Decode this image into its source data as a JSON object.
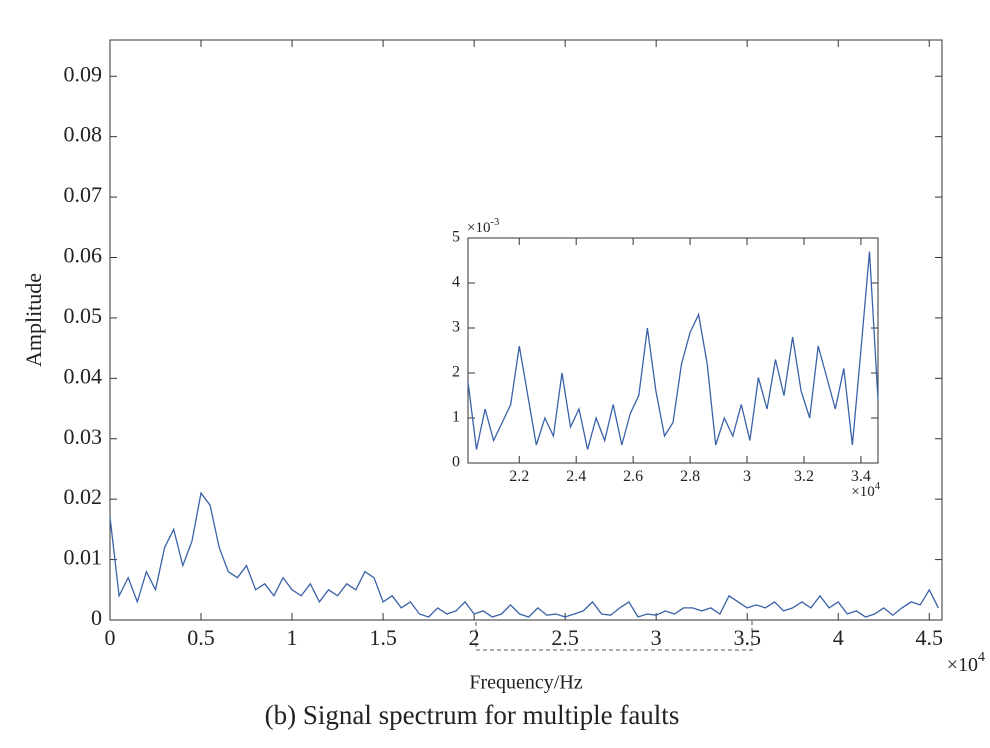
{
  "chart_data": [
    {
      "type": "line",
      "title": "(b) Signal spectrum for multiple faults",
      "xlabel": "Frequency/Hz",
      "ylabel": "Amplitude",
      "x_multiplier": {
        "base": "×10",
        "exponent": "4"
      },
      "xlim": [
        0,
        4.57
      ],
      "xticks": [
        0,
        0.5,
        1,
        1.5,
        2,
        2.5,
        3,
        3.5,
        4,
        4.5
      ],
      "ylim": [
        0,
        0.096
      ],
      "yticks": [
        0,
        0.01,
        0.02,
        0.03,
        0.04,
        0.05,
        0.06,
        0.07,
        0.08,
        0.09
      ],
      "series": [
        {
          "color": "#3a62a8",
          "x": [
            0,
            0.05,
            0.1,
            0.15,
            0.2,
            0.25,
            0.3,
            0.35,
            0.4,
            0.45,
            0.5,
            0.55,
            0.6,
            0.65,
            0.7,
            0.75,
            0.8,
            0.85,
            0.9,
            0.95,
            1.0,
            1.05,
            1.1,
            1.15,
            1.2,
            1.25,
            1.3,
            1.35,
            1.4,
            1.45,
            1.5,
            1.55,
            1.6,
            1.65,
            1.7,
            1.75,
            1.8,
            1.85,
            1.9,
            1.95,
            2.0,
            2.05,
            2.1,
            2.15,
            2.2,
            2.25,
            2.3,
            2.35,
            2.4,
            2.45,
            2.5,
            2.55,
            2.6,
            2.65,
            2.7,
            2.75,
            2.8,
            2.85,
            2.9,
            2.95,
            3.0,
            3.05,
            3.1,
            3.15,
            3.2,
            3.25,
            3.3,
            3.35,
            3.4,
            3.45,
            3.5,
            3.55,
            3.6,
            3.65,
            3.7,
            3.75,
            3.8,
            3.85,
            3.9,
            3.95,
            4.0,
            4.05,
            4.1,
            4.15,
            4.2,
            4.25,
            4.3,
            4.35,
            4.4,
            4.45,
            4.5,
            4.55
          ],
          "values": [
            0.017,
            0.004,
            0.007,
            0.003,
            0.008,
            0.005,
            0.012,
            0.015,
            0.009,
            0.013,
            0.021,
            0.019,
            0.012,
            0.008,
            0.007,
            0.009,
            0.005,
            0.006,
            0.004,
            0.007,
            0.005,
            0.004,
            0.006,
            0.003,
            0.005,
            0.004,
            0.006,
            0.005,
            0.008,
            0.007,
            0.003,
            0.004,
            0.002,
            0.003,
            0.001,
            0.0005,
            0.002,
            0.001,
            0.0015,
            0.003,
            0.001,
            0.0015,
            0.0005,
            0.001,
            0.0025,
            0.001,
            0.0005,
            0.002,
            0.0008,
            0.001,
            0.0005,
            0.001,
            0.0015,
            0.003,
            0.001,
            0.0008,
            0.002,
            0.003,
            0.0005,
            0.001,
            0.0008,
            0.0015,
            0.001,
            0.002,
            0.002,
            0.0015,
            0.002,
            0.001,
            0.004,
            0.003,
            0.002,
            0.0025,
            0.002,
            0.003,
            0.0015,
            0.002,
            0.003,
            0.002,
            0.004,
            0.002,
            0.003,
            0.001,
            0.0015,
            0.0005,
            0.001,
            0.002,
            0.0008,
            0.002,
            0.003,
            0.0025,
            0.005,
            0.002
          ]
        }
      ]
    },
    {
      "type": "line",
      "x_multiplier": {
        "base": "×10",
        "exponent": "4"
      },
      "y_multiplier": {
        "base": "×10",
        "exponent": "-3"
      },
      "xlim": [
        2.02,
        3.46
      ],
      "xticks": [
        2.2,
        2.4,
        2.6,
        2.8,
        3,
        3.2,
        3.4
      ],
      "ylim": [
        0,
        5
      ],
      "yticks": [
        0,
        1,
        2,
        3,
        4,
        5
      ],
      "series": [
        {
          "color": "#3a62a8",
          "x": [
            2.02,
            2.05,
            2.08,
            2.11,
            2.14,
            2.17,
            2.2,
            2.23,
            2.26,
            2.29,
            2.32,
            2.35,
            2.38,
            2.41,
            2.44,
            2.47,
            2.5,
            2.53,
            2.56,
            2.59,
            2.62,
            2.65,
            2.68,
            2.71,
            2.74,
            2.77,
            2.8,
            2.83,
            2.86,
            2.89,
            2.92,
            2.95,
            2.98,
            3.01,
            3.04,
            3.07,
            3.1,
            3.13,
            3.16,
            3.19,
            3.22,
            3.25,
            3.28,
            3.31,
            3.34,
            3.37,
            3.4,
            3.43,
            3.46
          ],
          "values": [
            1.8,
            0.3,
            1.2,
            0.5,
            0.9,
            1.3,
            2.6,
            1.5,
            0.4,
            1.0,
            0.6,
            2.0,
            0.8,
            1.2,
            0.3,
            1.0,
            0.5,
            1.3,
            0.4,
            1.1,
            1.5,
            3.0,
            1.6,
            0.6,
            0.9,
            2.2,
            2.9,
            3.3,
            2.2,
            0.4,
            1.0,
            0.6,
            1.3,
            0.5,
            1.9,
            1.2,
            2.3,
            1.5,
            2.8,
            1.6,
            1.0,
            2.6,
            1.9,
            1.2,
            2.1,
            0.4,
            2.5,
            4.7,
            1.4
          ]
        }
      ]
    }
  ]
}
